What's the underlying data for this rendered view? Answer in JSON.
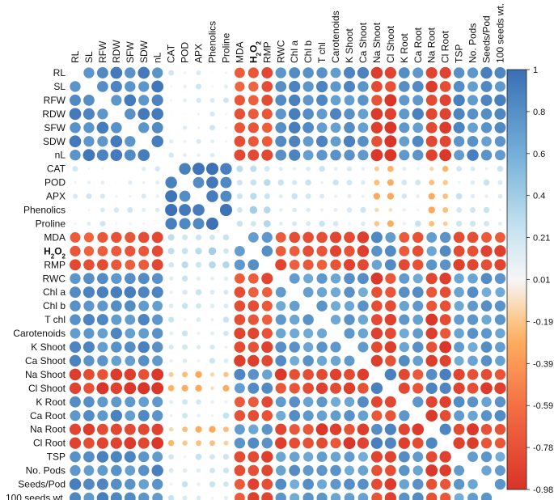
{
  "chart_data": {
    "type": "heatmap",
    "title": "",
    "variables": [
      "RL",
      "SL",
      "RFW",
      "RDW",
      "SFW",
      "SDW",
      "nL",
      "CAT",
      "POD",
      "APX",
      "Phenolics",
      "Proline",
      "MDA",
      "H2O2",
      "RMP",
      "RWC",
      "Chl a",
      "Chl b",
      "T chl",
      "Carotenoids",
      "K Shoot",
      "Ca Shoot",
      "Na Shoot",
      "Cl Shoot",
      "K Root",
      "Ca Root",
      "Na Root",
      "Cl Root",
      "TSP",
      "No. Pods",
      "Seeds/Pod",
      "100 seeds wt."
    ],
    "groups": {
      "growth": [
        0,
        1,
        2,
        3,
        4,
        5,
        6
      ],
      "enzyme": [
        7,
        8,
        9,
        10,
        11
      ],
      "stress": [
        12,
        13,
        14
      ],
      "physio": [
        15,
        16,
        17,
        18,
        19,
        20,
        21,
        24,
        25,
        28,
        29,
        30,
        31
      ],
      "ion": [
        22,
        23,
        26,
        27
      ]
    },
    "correlation_pattern": {
      "growth-growth": 0.86,
      "growth-enzyme": 0.1,
      "growth-stress": -0.75,
      "growth-physio": 0.8,
      "growth-ion": -0.88,
      "enzyme-enzyme": 0.92,
      "enzyme-stress": 0.3,
      "enzyme-physio": 0.15,
      "enzyme-ion": -0.2,
      "stress-stress": 0.8,
      "stress-physio": -0.8,
      "stress-ion": 0.75,
      "physio-physio": 0.72,
      "physio-ion": -0.85,
      "ion-ion": 0.85
    },
    "colorbar": {
      "ticks": [
        "1",
        "0.8",
        "0.6",
        "0.4",
        "0.21",
        "0.01",
        "-0.19",
        "-0.39",
        "-0.59",
        "-0.78",
        "-0.98"
      ],
      "min": -0.98,
      "max": 1
    },
    "colors": {
      "positive": "#3a6fb5",
      "negative": "#d73026",
      "neutral": "#f7f7f7"
    },
    "bold_labels": [
      "H2O2"
    ]
  }
}
